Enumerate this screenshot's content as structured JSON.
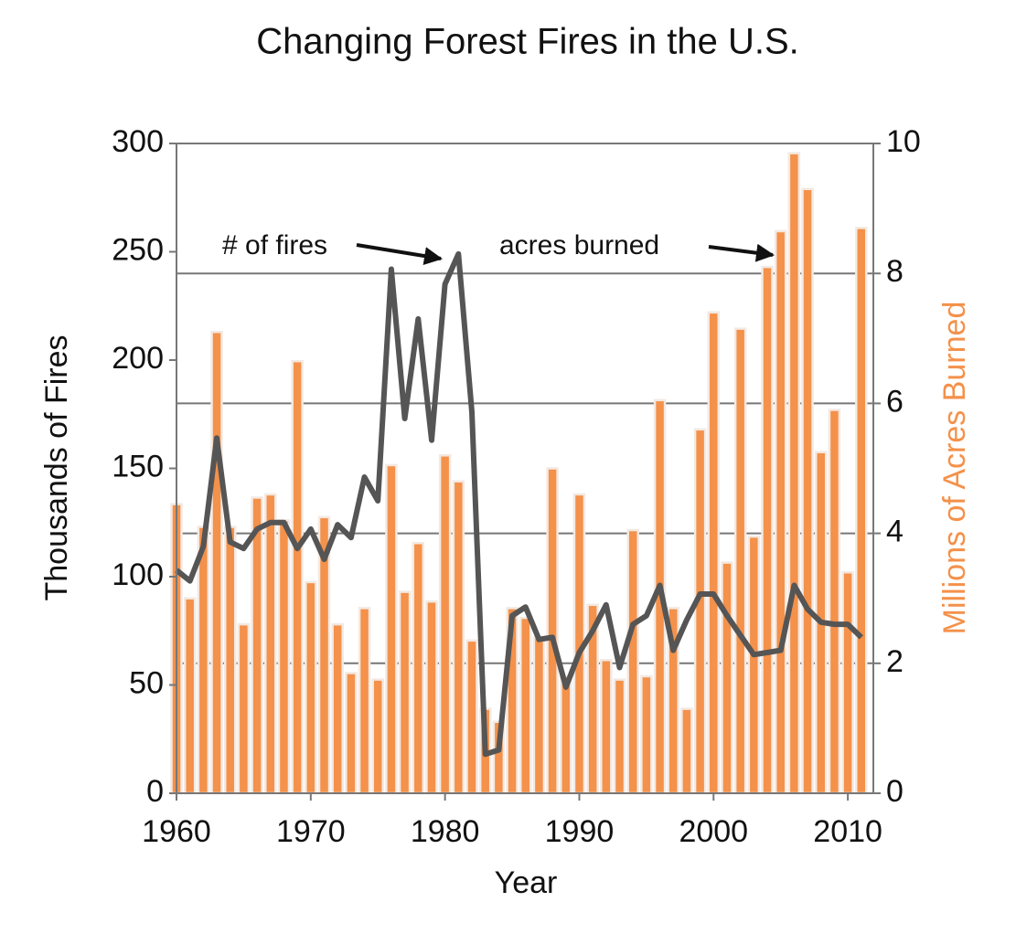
{
  "chart_data": {
    "type": "combo",
    "title": "Changing Forest Fires in the U.S.",
    "x_label": "Year",
    "y_label": "Thousands of Fires",
    "y2_label": "Millions of Acres Burned",
    "x": [
      1960,
      1961,
      1962,
      1963,
      1964,
      1965,
      1966,
      1967,
      1968,
      1969,
      1970,
      1971,
      1972,
      1973,
      1974,
      1975,
      1976,
      1977,
      1978,
      1979,
      1980,
      1981,
      1982,
      1983,
      1984,
      1985,
      1986,
      1987,
      1988,
      1989,
      1990,
      1991,
      1992,
      1993,
      1994,
      1995,
      1996,
      1997,
      1998,
      1999,
      2000,
      2001,
      2002,
      2003,
      2004,
      2005,
      2006,
      2007,
      2008,
      2009,
      2010,
      2011
    ],
    "series": [
      {
        "name": "acres burned",
        "type": "bar",
        "axis": "y2",
        "color": "#f4914a",
        "values": [
          4.45,
          3.0,
          4.1,
          7.1,
          4.1,
          2.6,
          4.55,
          4.6,
          4.2,
          6.65,
          3.25,
          4.25,
          2.6,
          1.85,
          2.85,
          1.75,
          5.05,
          3.1,
          3.85,
          2.95,
          5.2,
          4.8,
          2.35,
          1.3,
          1.1,
          2.85,
          2.7,
          2.4,
          5.0,
          1.8,
          4.6,
          2.9,
          2.05,
          1.75,
          4.05,
          1.8,
          6.05,
          2.85,
          1.3,
          5.6,
          7.4,
          3.55,
          7.15,
          3.95,
          8.1,
          8.65,
          9.85,
          9.3,
          5.25,
          5.9,
          3.4,
          8.7
        ]
      },
      {
        "name": "# of fires",
        "type": "line",
        "axis": "y",
        "color": "#555555",
        "values": [
          103,
          98,
          114,
          164,
          116,
          113,
          122,
          125,
          125,
          113,
          122,
          108,
          124,
          118,
          146,
          135,
          242,
          173,
          219,
          163,
          235,
          249,
          176,
          18,
          20,
          82,
          86,
          71,
          72,
          49,
          65,
          75,
          87,
          58,
          78,
          82,
          96,
          66,
          80,
          92,
          92,
          82,
          73,
          64,
          65,
          66,
          96,
          85,
          79,
          78,
          78,
          72
        ]
      }
    ],
    "xlim": [
      1960,
      2011
    ],
    "xticks": [
      1960,
      1970,
      1980,
      1990,
      2000,
      2010
    ],
    "ylim": [
      0,
      300
    ],
    "yticks": [
      0,
      50,
      100,
      150,
      200,
      250,
      300
    ],
    "y2lim": [
      0,
      10
    ],
    "y2ticks": [
      0,
      2,
      4,
      6,
      8,
      10
    ],
    "y2_label_color": "#f4914a",
    "grid": true
  }
}
